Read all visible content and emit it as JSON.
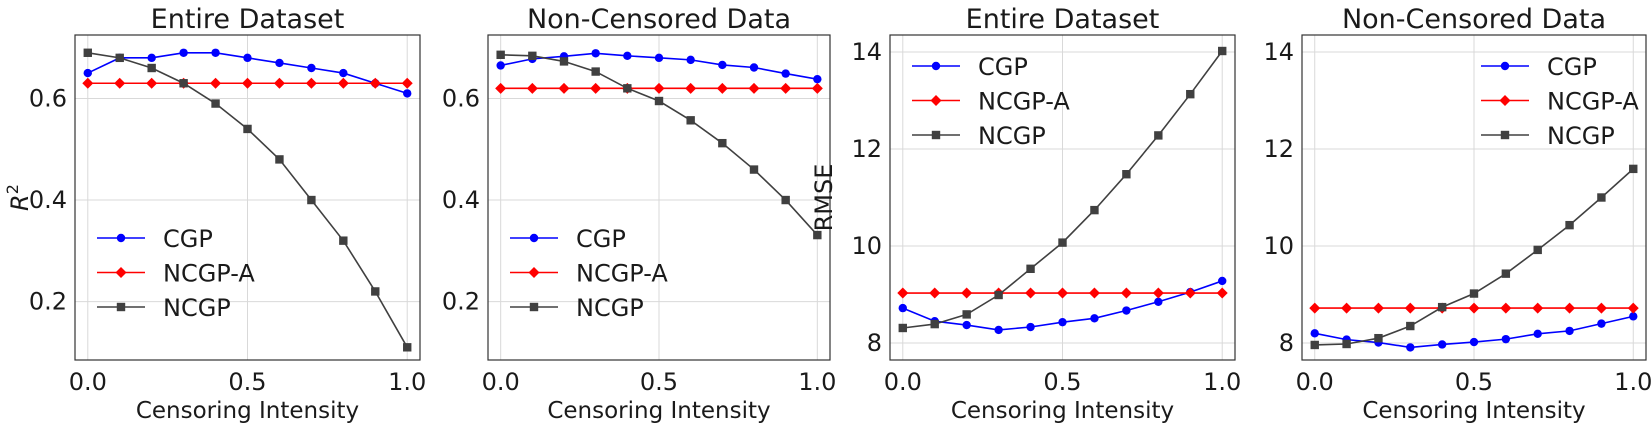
{
  "chart_data": [
    {
      "type": "line",
      "title": "Entire Dataset",
      "xlabel": "Censoring Intensity",
      "ylabel": "R",
      "ylabel_sup": "2",
      "xlim": [
        -0.04,
        1.04
      ],
      "ylim": [
        0.085,
        0.725
      ],
      "xticks": [
        0.0,
        0.5,
        1.0
      ],
      "xtick_labels": [
        "0.0",
        "0.5",
        "1.0"
      ],
      "yticks": [
        0.2,
        0.4,
        0.6
      ],
      "ytick_labels": [
        "0.2",
        "0.4",
        "0.6"
      ],
      "grid": true,
      "legend": "lower-left",
      "x": [
        0.0,
        0.1,
        0.2,
        0.3,
        0.4,
        0.5,
        0.6,
        0.7,
        0.8,
        0.9,
        1.0
      ],
      "series": [
        {
          "name": "CGP",
          "color": "#0000ff",
          "marker": "circle",
          "values": [
            0.65,
            0.68,
            0.68,
            0.69,
            0.69,
            0.68,
            0.67,
            0.66,
            0.65,
            0.63,
            0.61
          ]
        },
        {
          "name": "NCGP-A",
          "color": "#ff0000",
          "marker": "diamond",
          "values": [
            0.63,
            0.63,
            0.63,
            0.63,
            0.63,
            0.63,
            0.63,
            0.63,
            0.63,
            0.63,
            0.63
          ]
        },
        {
          "name": "NCGP",
          "color": "#404040",
          "marker": "square",
          "values": [
            0.69,
            0.68,
            0.66,
            0.63,
            0.59,
            0.54,
            0.48,
            0.4,
            0.32,
            0.22,
            0.11
          ]
        }
      ]
    },
    {
      "type": "line",
      "title": "Non-Censored Data",
      "xlabel": "Censoring Intensity",
      "ylabel": "",
      "ylabel_sup": "",
      "xlim": [
        -0.04,
        1.04
      ],
      "ylim": [
        0.085,
        0.725
      ],
      "xticks": [
        0.0,
        0.5,
        1.0
      ],
      "xtick_labels": [
        "0.0",
        "0.5",
        "1.0"
      ],
      "yticks": [
        0.2,
        0.4,
        0.6
      ],
      "ytick_labels": [
        "0.2",
        "0.4",
        "0.6"
      ],
      "grid": true,
      "legend": "lower-left",
      "x": [
        0.0,
        0.1,
        0.2,
        0.3,
        0.4,
        0.5,
        0.6,
        0.7,
        0.8,
        0.9,
        1.0
      ],
      "series": [
        {
          "name": "CGP",
          "color": "#0000ff",
          "marker": "circle",
          "values": [
            0.665,
            0.678,
            0.683,
            0.689,
            0.684,
            0.68,
            0.676,
            0.666,
            0.661,
            0.649,
            0.638
          ]
        },
        {
          "name": "NCGP-A",
          "color": "#ff0000",
          "marker": "diamond",
          "values": [
            0.62,
            0.62,
            0.62,
            0.62,
            0.62,
            0.62,
            0.62,
            0.62,
            0.62,
            0.62,
            0.62
          ]
        },
        {
          "name": "NCGP",
          "color": "#404040",
          "marker": "square",
          "values": [
            0.686,
            0.684,
            0.673,
            0.653,
            0.62,
            0.595,
            0.557,
            0.512,
            0.46,
            0.4,
            0.331
          ]
        }
      ]
    },
    {
      "type": "line",
      "title": "Entire Dataset",
      "xlabel": "Censoring Intensity",
      "ylabel": "RMSE",
      "ylabel_sup": "",
      "xlim": [
        -0.04,
        1.04
      ],
      "ylim": [
        7.65,
        14.35
      ],
      "xticks": [
        0.0,
        0.5,
        1.0
      ],
      "xtick_labels": [
        "0.0",
        "0.5",
        "1.0"
      ],
      "yticks": [
        8,
        10,
        12,
        14
      ],
      "ytick_labels": [
        "8",
        "10",
        "12",
        "14"
      ],
      "grid": true,
      "legend": "upper-left",
      "x": [
        0.0,
        0.1,
        0.2,
        0.3,
        0.4,
        0.5,
        0.6,
        0.7,
        0.8,
        0.9,
        1.0
      ],
      "series": [
        {
          "name": "CGP",
          "color": "#0000ff",
          "marker": "circle",
          "values": [
            8.72,
            8.45,
            8.37,
            8.27,
            8.33,
            8.43,
            8.51,
            8.67,
            8.85,
            9.05,
            9.28
          ]
        },
        {
          "name": "NCGP-A",
          "color": "#ff0000",
          "marker": "diamond",
          "values": [
            9.03,
            9.03,
            9.03,
            9.03,
            9.03,
            9.03,
            9.03,
            9.03,
            9.03,
            9.03,
            9.03
          ]
        },
        {
          "name": "NCGP",
          "color": "#404040",
          "marker": "square",
          "values": [
            8.31,
            8.39,
            8.59,
            8.99,
            9.53,
            10.07,
            10.74,
            11.48,
            12.28,
            13.13,
            14.02
          ]
        }
      ]
    },
    {
      "type": "line",
      "title": "Non-Censored Data",
      "xlabel": "Censoring Intensity",
      "ylabel": "",
      "ylabel_sup": "",
      "xlim": [
        -0.04,
        1.04
      ],
      "ylim": [
        7.65,
        14.35
      ],
      "xticks": [
        0.0,
        0.5,
        1.0
      ],
      "xtick_labels": [
        "0.0",
        "0.5",
        "1.0"
      ],
      "yticks": [
        8,
        10,
        12,
        14
      ],
      "ytick_labels": [
        "8",
        "10",
        "12",
        "14"
      ],
      "grid": true,
      "legend": "upper-right",
      "x": [
        0.0,
        0.1,
        0.2,
        0.3,
        0.4,
        0.5,
        0.6,
        0.7,
        0.8,
        0.9,
        1.0
      ],
      "series": [
        {
          "name": "CGP",
          "color": "#0000ff",
          "marker": "circle",
          "values": [
            8.2,
            8.07,
            8.01,
            7.91,
            7.97,
            8.02,
            8.08,
            8.19,
            8.25,
            8.4,
            8.55
          ]
        },
        {
          "name": "NCGP-A",
          "color": "#ff0000",
          "marker": "diamond",
          "values": [
            8.72,
            8.72,
            8.72,
            8.72,
            8.72,
            8.72,
            8.72,
            8.72,
            8.72,
            8.72,
            8.72
          ]
        },
        {
          "name": "NCGP",
          "color": "#404040",
          "marker": "square",
          "values": [
            7.96,
            7.98,
            8.1,
            8.35,
            8.74,
            9.02,
            9.43,
            9.92,
            10.43,
            11.0,
            11.59
          ]
        }
      ]
    }
  ]
}
